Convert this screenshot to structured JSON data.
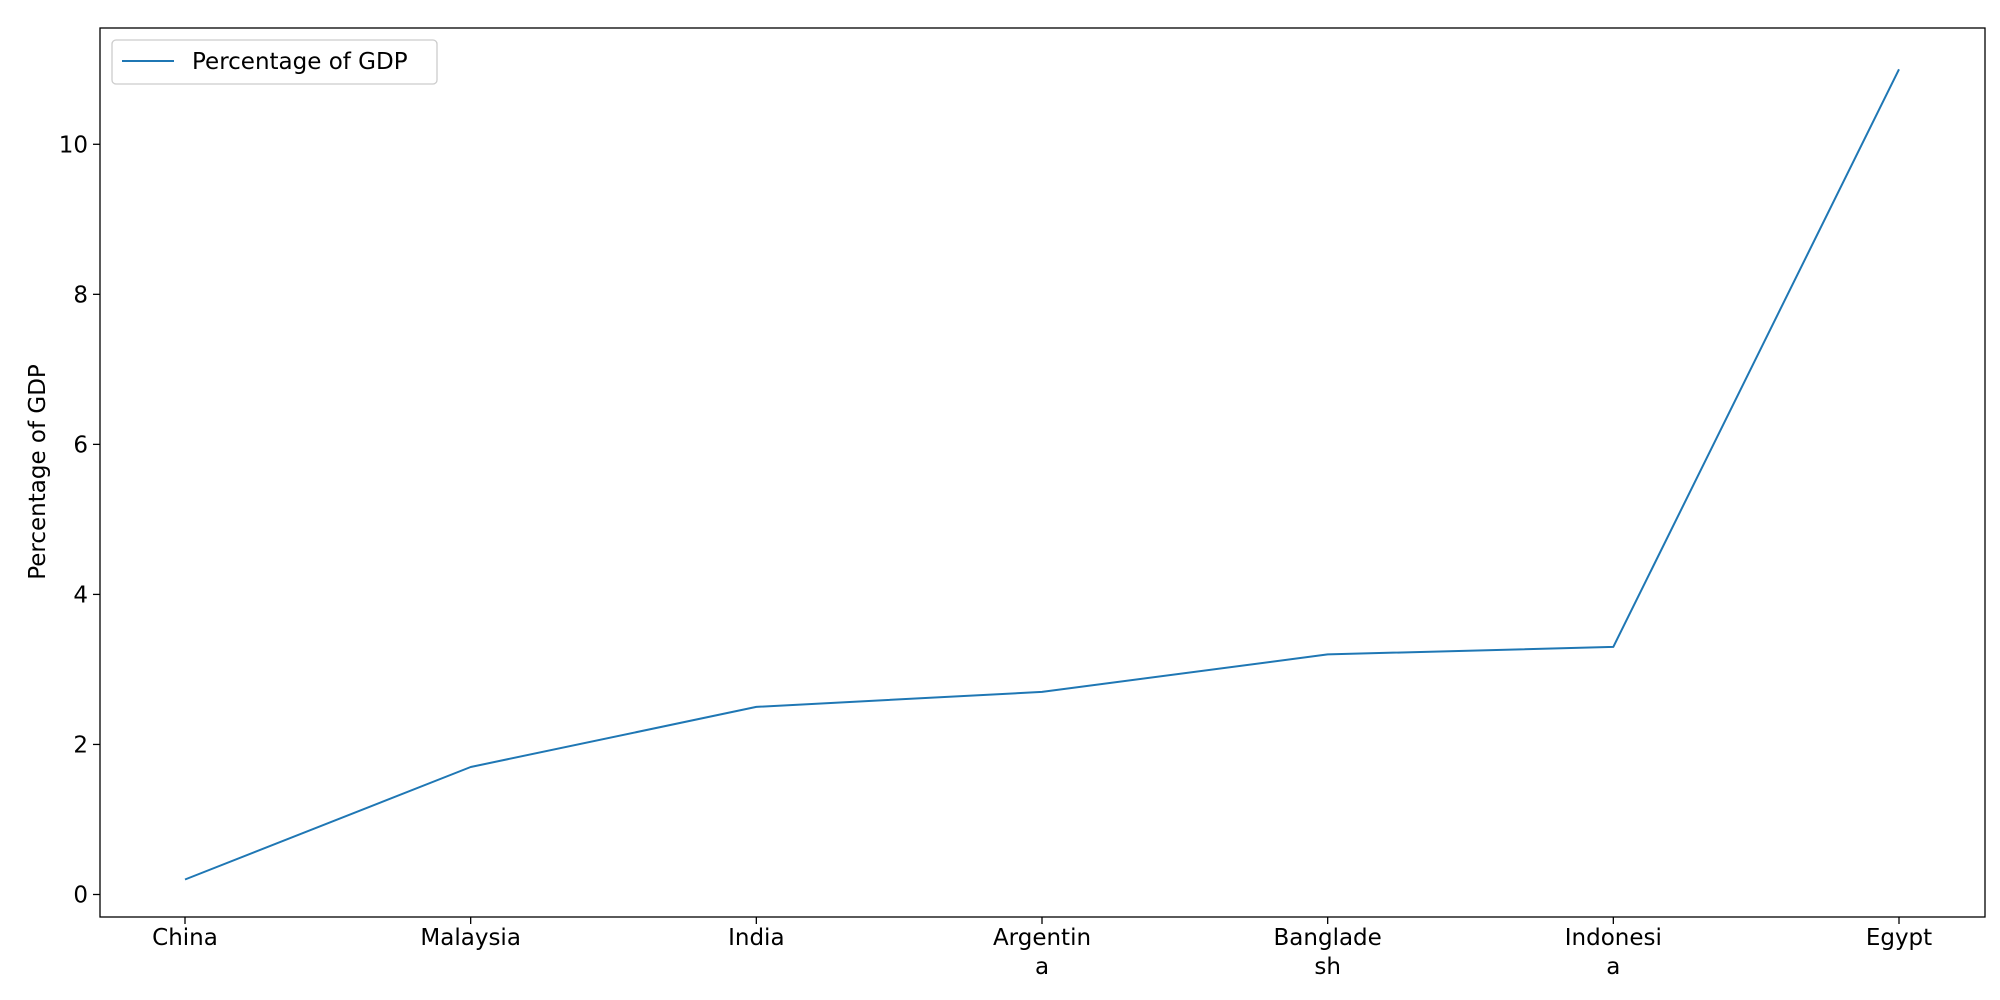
{
  "chart_data": {
    "type": "line",
    "categories": [
      "China",
      "Malaysia",
      "India",
      "Argentina",
      "Bangladesh",
      "Indonesia",
      "Egypt"
    ],
    "category_tick_lines": [
      [
        "China"
      ],
      [
        "Malaysia"
      ],
      [
        "India"
      ],
      [
        "Argentin",
        "a"
      ],
      [
        "Banglade",
        "sh"
      ],
      [
        "Indonesi",
        "a"
      ],
      [
        "Egypt"
      ]
    ],
    "series": [
      {
        "name": "Percentage of GDP",
        "values": [
          0.2,
          1.7,
          2.5,
          2.7,
          3.2,
          3.3,
          11.0
        ],
        "color": "#1f77b4"
      }
    ],
    "xlabel": "",
    "ylabel": "Percentage of GDP",
    "ylim": [
      -0.3,
      11.55
    ],
    "yticks": [
      0,
      2,
      4,
      6,
      8,
      10
    ],
    "grid": false,
    "legend_position": "top-left"
  }
}
